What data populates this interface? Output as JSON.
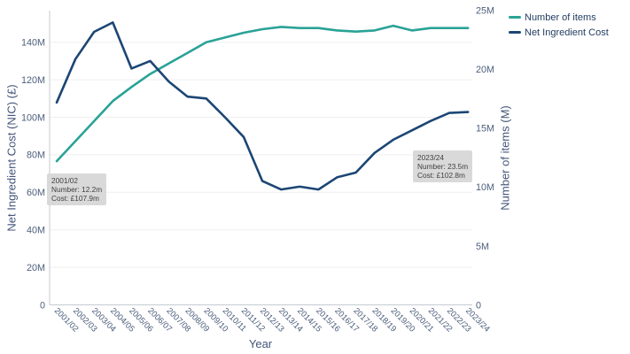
{
  "chart_data": {
    "type": "line",
    "categories": [
      "2001/02",
      "2002/03",
      "2003/04",
      "2004/05",
      "2005/06",
      "2006/07",
      "2007/08",
      "2008/09",
      "2009/10",
      "2010/11",
      "2011/12",
      "2012/13",
      "2013/14",
      "2014/15",
      "2015/16",
      "2016/17",
      "2017/18",
      "2018/19",
      "2019/20",
      "2020/21",
      "2021/22",
      "2022/23",
      "2023/24"
    ],
    "series": [
      {
        "name": "Number of items",
        "axis": "right",
        "color": "#2AA296",
        "unit": "millions of items",
        "values": [
          12.2,
          13.9,
          15.6,
          17.3,
          18.5,
          19.6,
          20.5,
          21.4,
          22.3,
          22.7,
          23.1,
          23.4,
          23.6,
          23.5,
          23.5,
          23.3,
          23.2,
          23.3,
          23.7,
          23.3,
          23.5,
          23.5,
          23.5
        ]
      },
      {
        "name": "Net Ingredient Cost",
        "axis": "left",
        "color": "#1C4674",
        "unit": "£ millions",
        "values": [
          107.9,
          131,
          145.5,
          150.5,
          126,
          130,
          119,
          111,
          110,
          100,
          89.5,
          66,
          61.5,
          63,
          61.5,
          68,
          70.5,
          81,
          88,
          93,
          98,
          102.3,
          102.8
        ]
      }
    ],
    "x_axis": {
      "title": "Year"
    },
    "left_axis": {
      "title": "Net Ingredient Cost (NIC) (£)",
      "tick_values": [
        0,
        20,
        40,
        60,
        80,
        100,
        120,
        140
      ],
      "tick_labels": [
        "0",
        "20M",
        "40M",
        "60M",
        "80M",
        "100M",
        "120M",
        "140M"
      ],
      "range": [
        0,
        157
      ]
    },
    "right_axis": {
      "title": "Number of items (M)",
      "tick_values": [
        0,
        5,
        10,
        15,
        20,
        25
      ],
      "tick_labels": [
        "0",
        "5M",
        "10M",
        "15M",
        "20M",
        "25M"
      ],
      "range": [
        0,
        25
      ]
    },
    "legend_position": "top-right",
    "grid": "horizontal",
    "annotations": [
      {
        "lines": [
          "2001/02",
          "Number: 12.2m",
          "Cost: £107.9m"
        ]
      },
      {
        "lines": [
          "2023/24",
          "Number: 23.5m",
          "Cost: £102.8m"
        ]
      }
    ]
  },
  "colors": {
    "teal": "#2AA296",
    "navy": "#1C4674",
    "tick_label": "#4D5E7C",
    "axis_title": "#44567A",
    "legend_text": "#1E3A5F",
    "grid": "#EFEFEF",
    "axis_line": "#C5CAD2",
    "annotation_bg": "#D9D9D9",
    "annotation_text": "#3F3F3F"
  }
}
